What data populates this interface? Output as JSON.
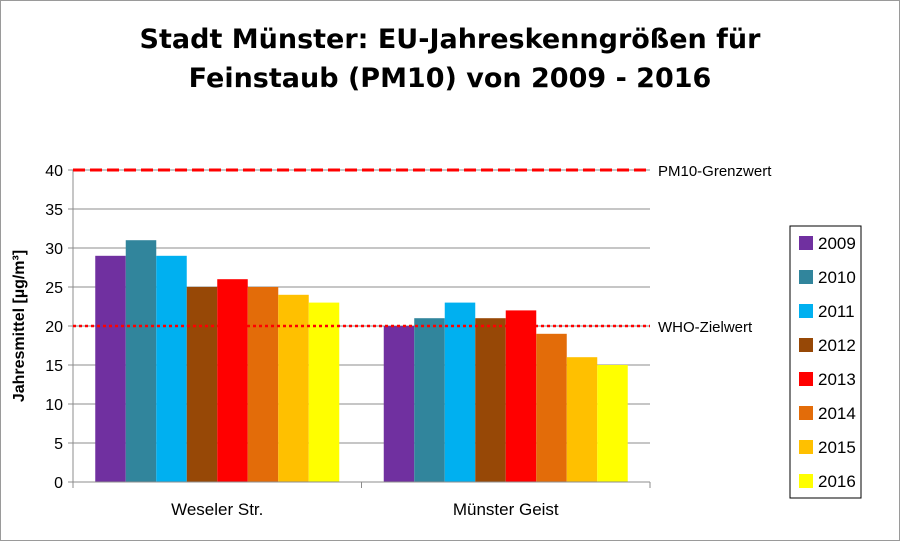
{
  "chart_data": {
    "type": "bar",
    "title_lines": [
      "Stadt Münster: EU-Jahreskenngrößen für",
      "Feinstaub (PM10) von 2009 - 2016"
    ],
    "ylabel": "Jahresmittel [µg/m³]",
    "ylim": [
      0,
      40
    ],
    "yticks": [
      0,
      5,
      10,
      15,
      20,
      25,
      30,
      35,
      40
    ],
    "categories": [
      "Weseler Str.",
      "Münster Geist"
    ],
    "series": [
      {
        "name": "2009",
        "color": "#7030a0",
        "values": [
          29,
          20
        ]
      },
      {
        "name": "2010",
        "color": "#31859c",
        "values": [
          31,
          21
        ]
      },
      {
        "name": "2011",
        "color": "#00b0f0",
        "values": [
          29,
          23
        ]
      },
      {
        "name": "2012",
        "color": "#974806",
        "values": [
          25,
          21
        ]
      },
      {
        "name": "2013",
        "color": "#ff0000",
        "values": [
          26,
          22
        ]
      },
      {
        "name": "2014",
        "color": "#e36c09",
        "values": [
          25,
          19
        ]
      },
      {
        "name": "2015",
        "color": "#ffc000",
        "values": [
          24,
          16
        ]
      },
      {
        "name": "2016",
        "color": "#ffff00",
        "values": [
          23,
          15
        ]
      }
    ],
    "reference_lines": [
      {
        "label": "PM10-Grenzwert",
        "value": 40,
        "color": "#ff0000",
        "style": "dashed"
      },
      {
        "label": "WHO-Zielwert",
        "value": 20,
        "color": "#ff0000",
        "style": "dotted"
      }
    ],
    "grid": true,
    "legend_position": "right"
  }
}
